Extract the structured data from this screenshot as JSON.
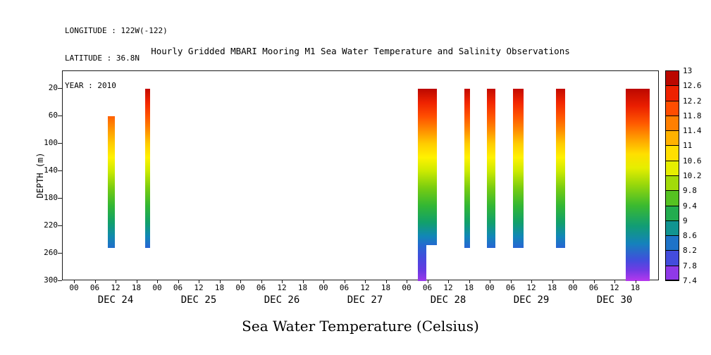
{
  "header": {
    "longitude": "LONGITUDE : 122W(-122)",
    "latitude": "LATITUDE : 36.8N",
    "year": "YEAR : 2010"
  },
  "title": "Hourly Gridded MBARI Mooring M1 Sea Water Temperature and Salinity Observations",
  "chart_data": {
    "type": "heatmap",
    "title": "Hourly Gridded MBARI Mooring M1 Sea Water Temperature and Salinity Observations",
    "bottom_label": "Sea Water Temperature (Celsius)",
    "ylabel": "DEPTH (m)",
    "y_ticks": [
      20,
      60,
      100,
      140,
      180,
      220,
      260,
      300
    ],
    "depth_range": [
      20,
      300
    ],
    "y_axis_inverted": true,
    "x_axis": {
      "start": "DEC 24 2010 00:00",
      "end": "DEC 31 2010 ~00:00",
      "hour_tick_labels": [
        "00",
        "06",
        "12",
        "18"
      ],
      "day_labels": [
        "DEC 24",
        "DEC 25",
        "DEC 26",
        "DEC 27",
        "DEC 28",
        "DEC 29",
        "DEC 30"
      ]
    },
    "colorbar": {
      "unit": "Celsius",
      "max": 13,
      "min": 7.4,
      "step": 0.4,
      "tick_labels": [
        "13",
        "12.6",
        "12.2",
        "11.8",
        "11.4",
        "11",
        "10.6",
        "10.2",
        "9.8",
        "9.4",
        "9",
        "8.6",
        "8.2",
        "7.8",
        "7.4"
      ]
    },
    "colormap_stops": [
      [
        13.0,
        "#990000"
      ],
      [
        12.6,
        "#dd1100"
      ],
      [
        12.2,
        "#ff3300"
      ],
      [
        11.8,
        "#ff6600"
      ],
      [
        11.4,
        "#ff9900"
      ],
      [
        11.0,
        "#ffcc00"
      ],
      [
        10.6,
        "#fff200"
      ],
      [
        10.2,
        "#ccea00"
      ],
      [
        9.8,
        "#77cc11"
      ],
      [
        9.4,
        "#33b733"
      ],
      [
        9.0,
        "#11a06b"
      ],
      [
        8.6,
        "#1187b7"
      ],
      [
        8.2,
        "#2b5fd9"
      ],
      [
        7.8,
        "#5a3ae0"
      ],
      [
        7.4,
        "#c438f0"
      ]
    ],
    "profiles": [
      {
        "start_hour": 9.5,
        "end_hour": 11.5,
        "points": [
          [
            60,
            11.85
          ],
          [
            80,
            11.4
          ],
          [
            100,
            11.0
          ],
          [
            120,
            10.6
          ],
          [
            140,
            10.2
          ],
          [
            165,
            9.8
          ],
          [
            190,
            9.4
          ],
          [
            215,
            9.0
          ],
          [
            235,
            8.65
          ],
          [
            252,
            8.35
          ]
        ]
      },
      {
        "start_hour": 20.3,
        "end_hour": 21.8,
        "points": [
          [
            20,
            12.75
          ],
          [
            40,
            12.35
          ],
          [
            60,
            11.95
          ],
          [
            80,
            11.5
          ],
          [
            100,
            11.0
          ],
          [
            120,
            10.6
          ],
          [
            140,
            10.2
          ],
          [
            165,
            9.8
          ],
          [
            190,
            9.4
          ],
          [
            215,
            9.0
          ],
          [
            235,
            8.6
          ],
          [
            252,
            8.25
          ]
        ]
      },
      {
        "start_hour": 99.0,
        "end_hour": 104.5,
        "points": [
          [
            20,
            12.8
          ],
          [
            40,
            12.4
          ],
          [
            60,
            12.0
          ],
          [
            80,
            11.5
          ],
          [
            100,
            11.0
          ],
          [
            120,
            10.6
          ],
          [
            140,
            10.2
          ],
          [
            165,
            9.8
          ],
          [
            190,
            9.4
          ],
          [
            215,
            9.0
          ],
          [
            235,
            8.6
          ],
          [
            248,
            8.3
          ]
        ]
      },
      {
        "start_hour": 99.0,
        "end_hour": 101.5,
        "points": [
          [
            248,
            8.3
          ],
          [
            265,
            8.0
          ],
          [
            285,
            7.75
          ],
          [
            300,
            7.55
          ]
        ]
      },
      {
        "start_hour": 112.5,
        "end_hour": 114.0,
        "points": [
          [
            20,
            12.75
          ],
          [
            40,
            12.35
          ],
          [
            60,
            11.95
          ],
          [
            80,
            11.5
          ],
          [
            100,
            11.0
          ],
          [
            120,
            10.6
          ],
          [
            140,
            10.2
          ],
          [
            165,
            9.8
          ],
          [
            190,
            9.4
          ],
          [
            215,
            9.0
          ],
          [
            235,
            8.6
          ],
          [
            252,
            8.25
          ]
        ]
      },
      {
        "start_hour": 119.0,
        "end_hour": 121.5,
        "points": [
          [
            20,
            12.75
          ],
          [
            40,
            12.35
          ],
          [
            60,
            11.95
          ],
          [
            80,
            11.5
          ],
          [
            100,
            11.0
          ],
          [
            120,
            10.6
          ],
          [
            140,
            10.2
          ],
          [
            165,
            9.8
          ],
          [
            190,
            9.4
          ],
          [
            215,
            9.0
          ],
          [
            235,
            8.6
          ],
          [
            252,
            8.25
          ]
        ]
      },
      {
        "start_hour": 126.5,
        "end_hour": 129.5,
        "points": [
          [
            20,
            12.75
          ],
          [
            40,
            12.35
          ],
          [
            60,
            11.95
          ],
          [
            80,
            11.5
          ],
          [
            100,
            11.0
          ],
          [
            120,
            10.6
          ],
          [
            140,
            10.2
          ],
          [
            165,
            9.8
          ],
          [
            190,
            9.4
          ],
          [
            215,
            9.0
          ],
          [
            235,
            8.6
          ],
          [
            252,
            8.25
          ]
        ]
      },
      {
        "start_hour": 139.0,
        "end_hour": 141.5,
        "points": [
          [
            20,
            12.75
          ],
          [
            40,
            12.35
          ],
          [
            60,
            11.95
          ],
          [
            80,
            11.5
          ],
          [
            100,
            11.0
          ],
          [
            120,
            10.6
          ],
          [
            140,
            10.2
          ],
          [
            165,
            9.8
          ],
          [
            190,
            9.4
          ],
          [
            215,
            9.0
          ],
          [
            235,
            8.6
          ],
          [
            252,
            8.25
          ]
        ]
      },
      {
        "start_hour": 159.0,
        "end_hour": 166.0,
        "points": [
          [
            20,
            12.8
          ],
          [
            45,
            12.45
          ],
          [
            70,
            11.9
          ],
          [
            95,
            11.3
          ],
          [
            115,
            10.8
          ],
          [
            135,
            10.4
          ],
          [
            160,
            9.95
          ],
          [
            190,
            9.45
          ],
          [
            220,
            8.95
          ],
          [
            245,
            8.55
          ],
          [
            270,
            8.0
          ],
          [
            285,
            7.7
          ],
          [
            300,
            7.45
          ]
        ]
      }
    ]
  }
}
